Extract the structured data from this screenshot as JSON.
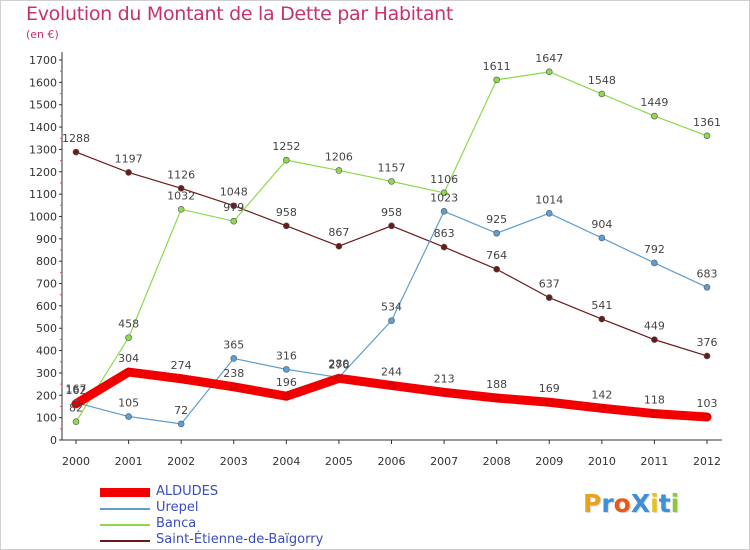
{
  "chart_data": {
    "type": "line",
    "title": "Evolution du Montant de la Dette par Habitant",
    "subtitle": "(en €)",
    "x": [
      "2000",
      "2001",
      "2002",
      "2003",
      "2004",
      "2005",
      "2006",
      "2007",
      "2008",
      "2009",
      "2010",
      "2011",
      "2012"
    ],
    "yticks": [
      "0",
      "100",
      "200",
      "300",
      "400",
      "500",
      "600",
      "700",
      "800",
      "900",
      "1000",
      "1100",
      "1200",
      "1300",
      "1400",
      "1500",
      "1600",
      "1700"
    ],
    "ylim": [
      0,
      1700
    ],
    "grid": false,
    "legend_position": "bottom-left",
    "series": [
      {
        "name": "ALDUDES",
        "color": "#f20000",
        "values": [
          162,
          304,
          274,
          238,
          196,
          276,
          244,
          213,
          188,
          169,
          142,
          118,
          103
        ]
      },
      {
        "name": "Urepel",
        "color": "#5f9ed1",
        "values": [
          167,
          105,
          72,
          365,
          316,
          280,
          534,
          1023,
          925,
          1014,
          904,
          792,
          683
        ]
      },
      {
        "name": "Banca",
        "color": "#8ed94d",
        "values": [
          82,
          458,
          1032,
          979,
          1252,
          1206,
          1157,
          1106,
          1611,
          1647,
          1548,
          1449,
          1361
        ]
      },
      {
        "name": "Saint-Étienne-de-Baïgorry",
        "color": "#6b1a1a",
        "values": [
          1288,
          1197,
          1126,
          1048,
          958,
          867,
          958,
          863,
          764,
          637,
          541,
          449,
          376
        ]
      }
    ]
  },
  "logo": {
    "text": "ProXiti",
    "colors": [
      "#e8a21c",
      "#3d8fd6",
      "#e85a1c",
      "#3d8fd6",
      "#e8c21c",
      "#3d8fd6",
      "#8ec63f"
    ]
  }
}
